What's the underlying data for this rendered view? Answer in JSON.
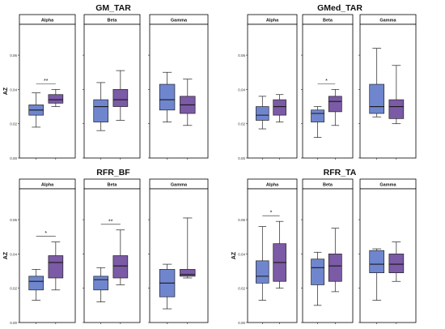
{
  "figure": {
    "axis_label": "AZ",
    "y_ticks": [
      "0.00",
      "0.02",
      "0.04",
      "0.06"
    ],
    "facets": [
      "Alpha",
      "Beta",
      "Gamma"
    ]
  },
  "colors": {
    "group1": "#6f86cf",
    "group2": "#7b5aa6",
    "line": "#222222",
    "strip": "#ffffff",
    "frame": "#000000"
  },
  "chart_data": [
    {
      "type": "box",
      "title": "GM_TAR",
      "ylabel": "AZ",
      "ylim": [
        0,
        0.078
      ],
      "facets": [
        {
          "name": "Alpha",
          "significance": "**",
          "boxes": [
            {
              "min": 0.018,
              "q1": 0.025,
              "median": 0.028,
              "q3": 0.031,
              "max": 0.038
            },
            {
              "min": 0.03,
              "q1": 0.032,
              "median": 0.034,
              "q3": 0.037,
              "max": 0.04
            }
          ]
        },
        {
          "name": "Beta",
          "significance": "",
          "boxes": [
            {
              "min": 0.016,
              "q1": 0.021,
              "median": 0.03,
              "q3": 0.034,
              "max": 0.044
            },
            {
              "min": 0.022,
              "q1": 0.03,
              "median": 0.034,
              "q3": 0.04,
              "max": 0.051
            }
          ]
        },
        {
          "name": "Gamma",
          "significance": "",
          "boxes": [
            {
              "min": 0.021,
              "q1": 0.028,
              "median": 0.034,
              "q3": 0.043,
              "max": 0.05
            },
            {
              "min": 0.019,
              "q1": 0.026,
              "median": 0.031,
              "q3": 0.036,
              "max": 0.046
            }
          ]
        }
      ]
    },
    {
      "type": "box",
      "title": "GMed_TAR",
      "ylabel": "",
      "ylim": [
        0,
        0.078
      ],
      "facets": [
        {
          "name": "Alpha",
          "significance": "",
          "boxes": [
            {
              "min": 0.017,
              "q1": 0.022,
              "median": 0.025,
              "q3": 0.03,
              "max": 0.036
            },
            {
              "min": 0.021,
              "q1": 0.025,
              "median": 0.03,
              "q3": 0.034,
              "max": 0.037
            }
          ]
        },
        {
          "name": "Beta",
          "significance": "*",
          "boxes": [
            {
              "min": 0.012,
              "q1": 0.021,
              "median": 0.026,
              "q3": 0.028,
              "max": 0.03
            },
            {
              "min": 0.019,
              "q1": 0.027,
              "median": 0.033,
              "q3": 0.036,
              "max": 0.04
            }
          ]
        },
        {
          "name": "Gamma",
          "significance": "",
          "boxes": [
            {
              "min": 0.024,
              "q1": 0.026,
              "median": 0.03,
              "q3": 0.043,
              "max": 0.064
            },
            {
              "min": 0.02,
              "q1": 0.023,
              "median": 0.03,
              "q3": 0.034,
              "max": 0.054
            }
          ]
        }
      ]
    },
    {
      "type": "box",
      "title": "RFR_BF",
      "ylabel": "AZ",
      "ylim": [
        0,
        0.078
      ],
      "facets": [
        {
          "name": "Alpha",
          "significance": "*",
          "boxes": [
            {
              "min": 0.013,
              "q1": 0.019,
              "median": 0.024,
              "q3": 0.027,
              "max": 0.031
            },
            {
              "min": 0.019,
              "q1": 0.026,
              "median": 0.035,
              "q3": 0.039,
              "max": 0.047
            }
          ]
        },
        {
          "name": "Beta",
          "significance": "**",
          "boxes": [
            {
              "min": 0.012,
              "q1": 0.019,
              "median": 0.025,
              "q3": 0.027,
              "max": 0.032
            },
            {
              "min": 0.022,
              "q1": 0.026,
              "median": 0.033,
              "q3": 0.039,
              "max": 0.054
            }
          ]
        },
        {
          "name": "Gamma",
          "significance": "",
          "boxes": [
            {
              "min": 0.008,
              "q1": 0.015,
              "median": 0.023,
              "q3": 0.031,
              "max": 0.034
            },
            {
              "min": 0.026,
              "q1": 0.027,
              "median": 0.028,
              "q3": 0.031,
              "max": 0.061
            }
          ]
        }
      ]
    },
    {
      "type": "box",
      "title": "RFR_TA",
      "ylabel": "AZ",
      "ylim": [
        0,
        0.078
      ],
      "facets": [
        {
          "name": "Alpha",
          "significance": "*",
          "boxes": [
            {
              "min": 0.013,
              "q1": 0.023,
              "median": 0.027,
              "q3": 0.036,
              "max": 0.056
            },
            {
              "min": 0.02,
              "q1": 0.024,
              "median": 0.035,
              "q3": 0.046,
              "max": 0.059
            }
          ]
        },
        {
          "name": "Beta",
          "significance": "",
          "boxes": [
            {
              "min": 0.01,
              "q1": 0.022,
              "median": 0.032,
              "q3": 0.037,
              "max": 0.041
            },
            {
              "min": 0.018,
              "q1": 0.024,
              "median": 0.033,
              "q3": 0.04,
              "max": 0.055
            }
          ]
        },
        {
          "name": "Gamma",
          "significance": "",
          "boxes": [
            {
              "min": 0.013,
              "q1": 0.029,
              "median": 0.034,
              "q3": 0.042,
              "max": 0.043
            },
            {
              "min": 0.024,
              "q1": 0.029,
              "median": 0.034,
              "q3": 0.04,
              "max": 0.047
            }
          ]
        }
      ]
    }
  ]
}
